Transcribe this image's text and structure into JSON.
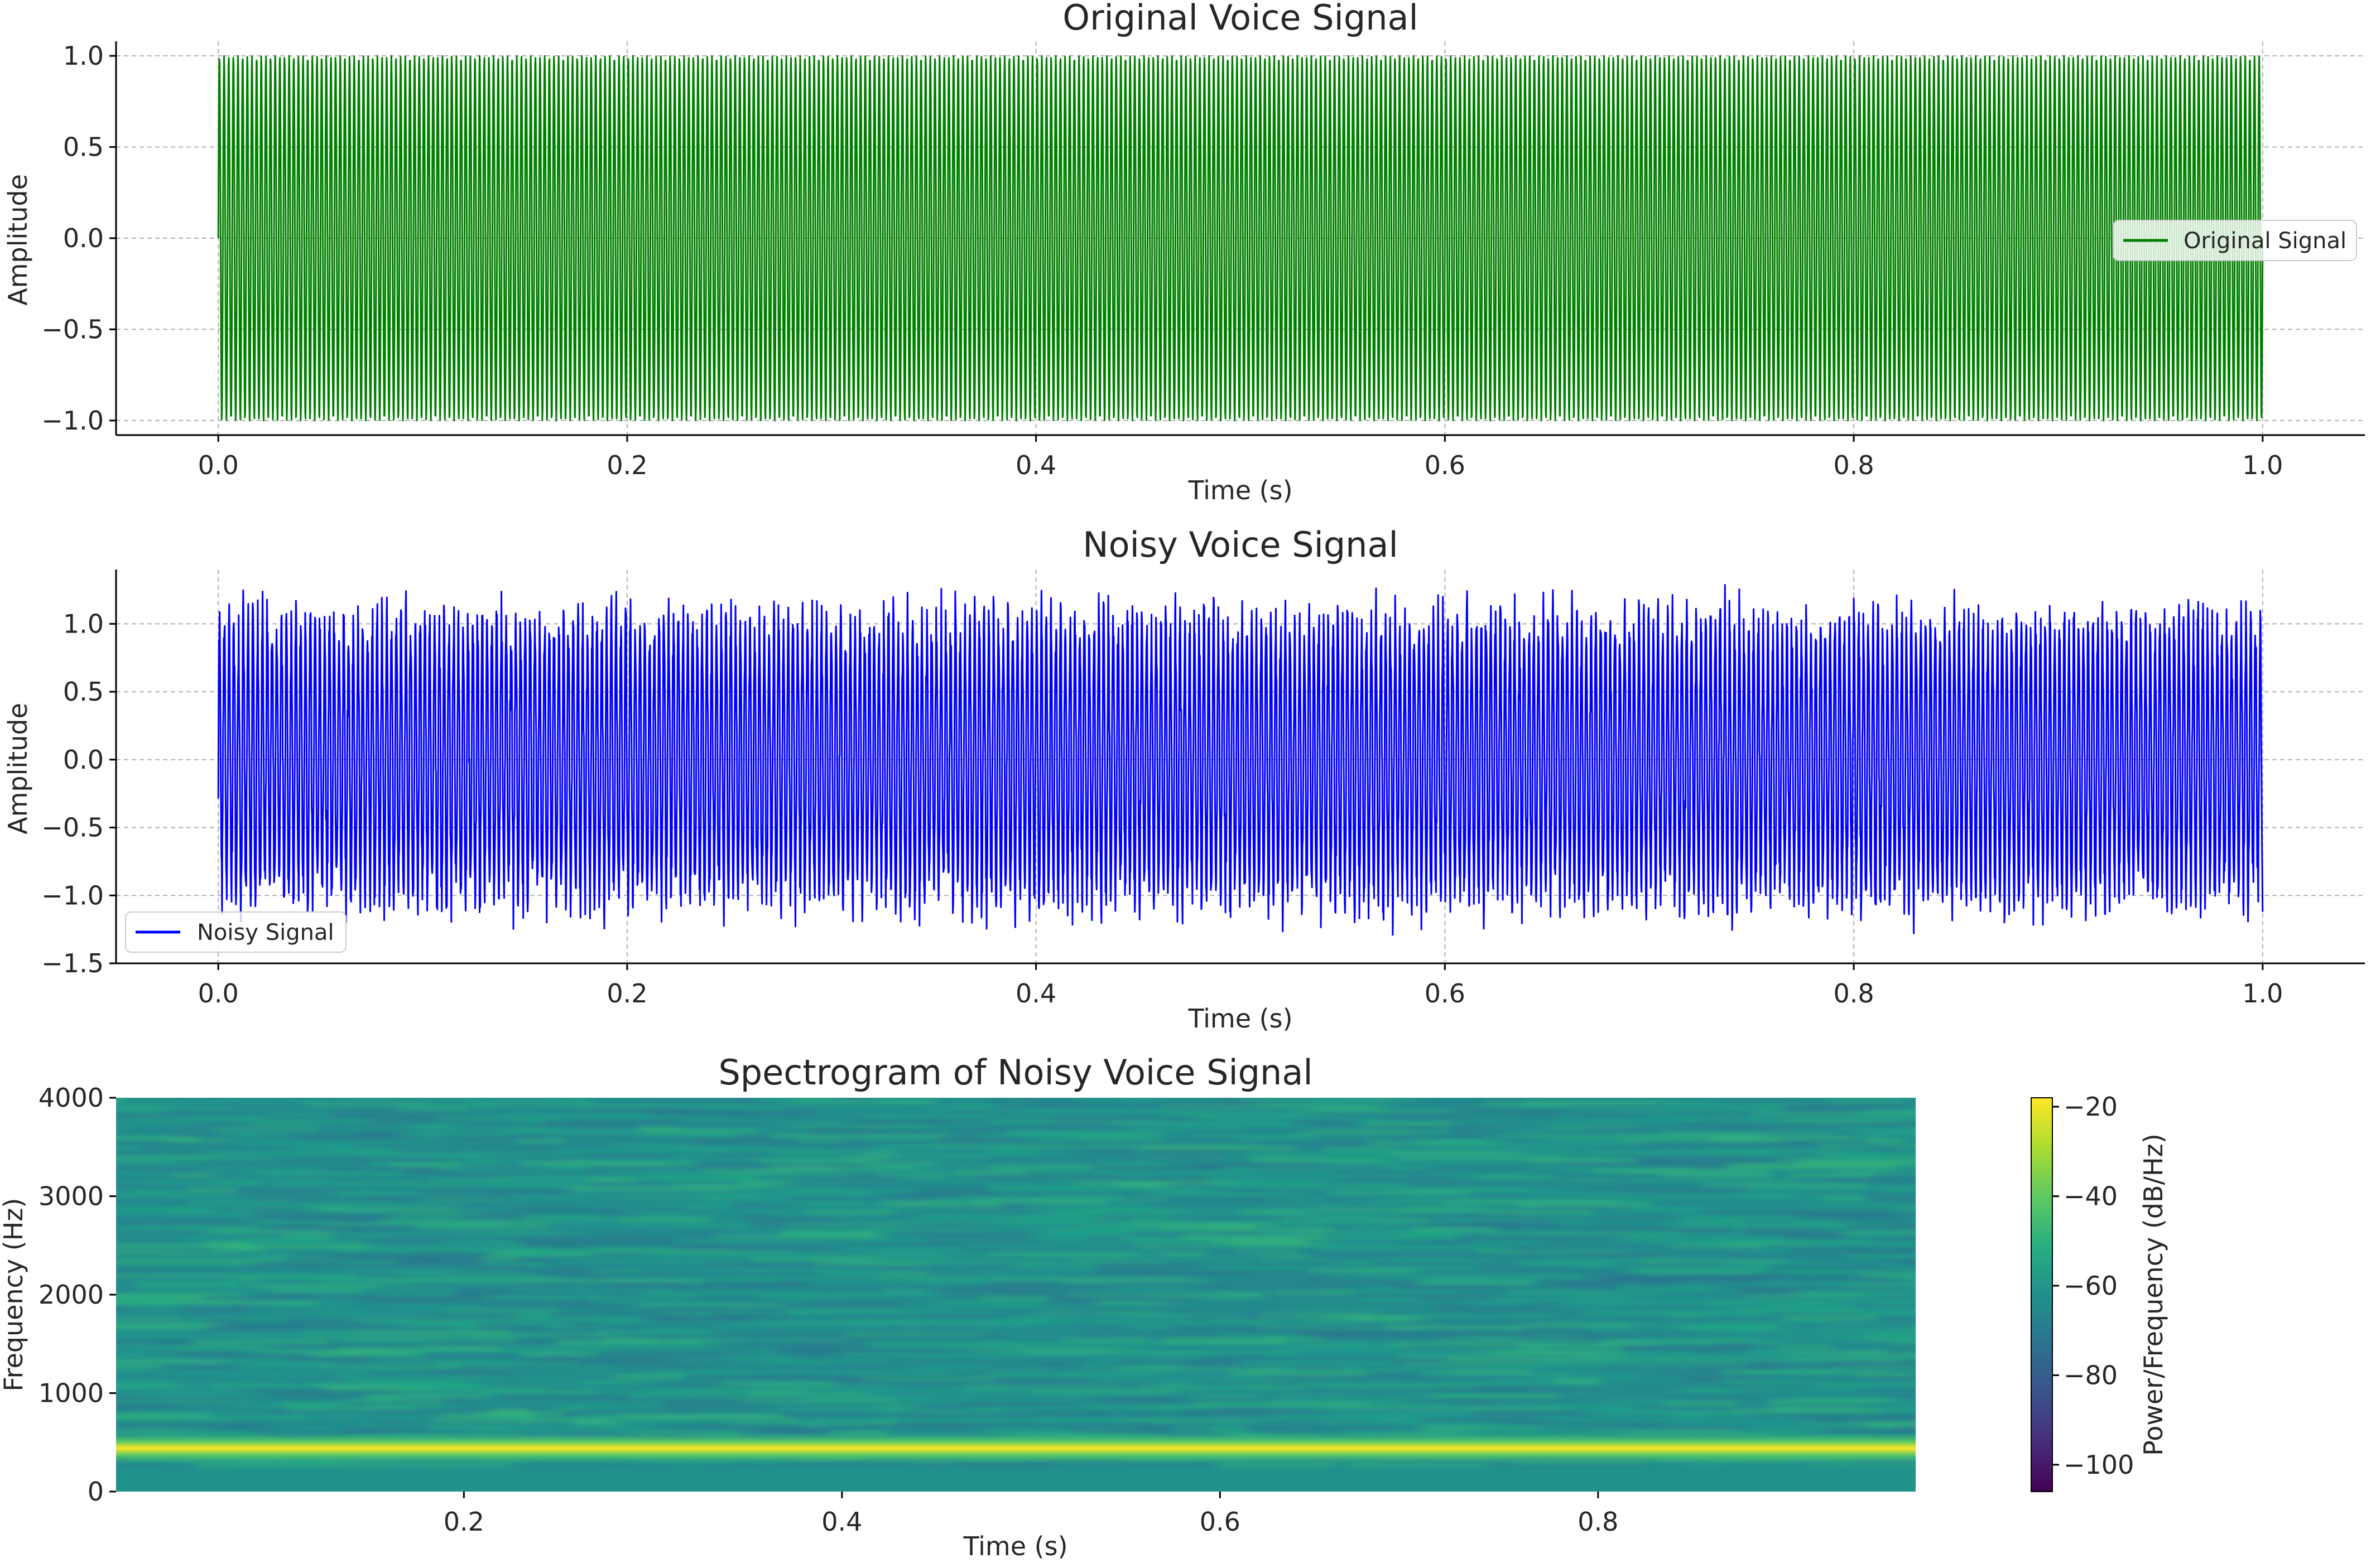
{
  "chart_data": [
    {
      "type": "line",
      "title": "Original Voice Signal",
      "xlabel": "Time (s)",
      "ylabel": "Amplitude",
      "xlim": [
        -0.05,
        1.05
      ],
      "ylim": [
        -1.08,
        1.08
      ],
      "xticks": [
        "0.0",
        "0.2",
        "0.4",
        "0.6",
        "0.8",
        "1.0"
      ],
      "yticks": [
        "1.0",
        "0.5",
        "0.0",
        "−0.5",
        "−1.0"
      ],
      "grid": true,
      "legend": {
        "placement": "center-right"
      },
      "series": [
        {
          "name": "Original Signal",
          "color": "#008000",
          "signal": "sine",
          "frequency_hz": 440,
          "amplitude": 1.0,
          "x_range": [
            0,
            1
          ]
        }
      ]
    },
    {
      "type": "line",
      "title": "Noisy Voice Signal",
      "xlabel": "Time (s)",
      "ylabel": "Amplitude",
      "xlim": [
        -0.05,
        1.05
      ],
      "ylim": [
        -1.5,
        1.4
      ],
      "xticks": [
        "0.0",
        "0.2",
        "0.4",
        "0.6",
        "0.8",
        "1.0"
      ],
      "yticks": [
        "1.0",
        "0.5",
        "0.0",
        "−0.5",
        "−1.0",
        "−1.5"
      ],
      "grid": true,
      "legend": {
        "placement": "lower-left"
      },
      "series": [
        {
          "name": "Noisy Signal",
          "color": "#0000ff",
          "signal": "sine + noise",
          "frequency_hz": 440,
          "amplitude": 1.0,
          "noise_max": 0.3,
          "x_range": [
            0,
            1
          ]
        }
      ]
    },
    {
      "type": "heatmap",
      "title": "Spectrogram of Noisy Voice Signal",
      "xlabel": "Time (s)",
      "ylabel": "Frequency (Hz)",
      "xlim": [
        0.016,
        0.968
      ],
      "ylim": [
        0,
        4000
      ],
      "xticks": [
        "0.2",
        "0.4",
        "0.6",
        "0.8"
      ],
      "yticks": [
        "4000",
        "3000",
        "2000",
        "1000",
        "0"
      ],
      "colormap": "viridis",
      "colorbar": {
        "label": "Power/Frequency (dB/Hz)",
        "range": [
          -106,
          -18
        ],
        "ticks": [
          "−20",
          "−40",
          "−60",
          "−80",
          "−100"
        ]
      },
      "tone_hz": 440,
      "tone_db": -20,
      "background_db": -58
    }
  ]
}
